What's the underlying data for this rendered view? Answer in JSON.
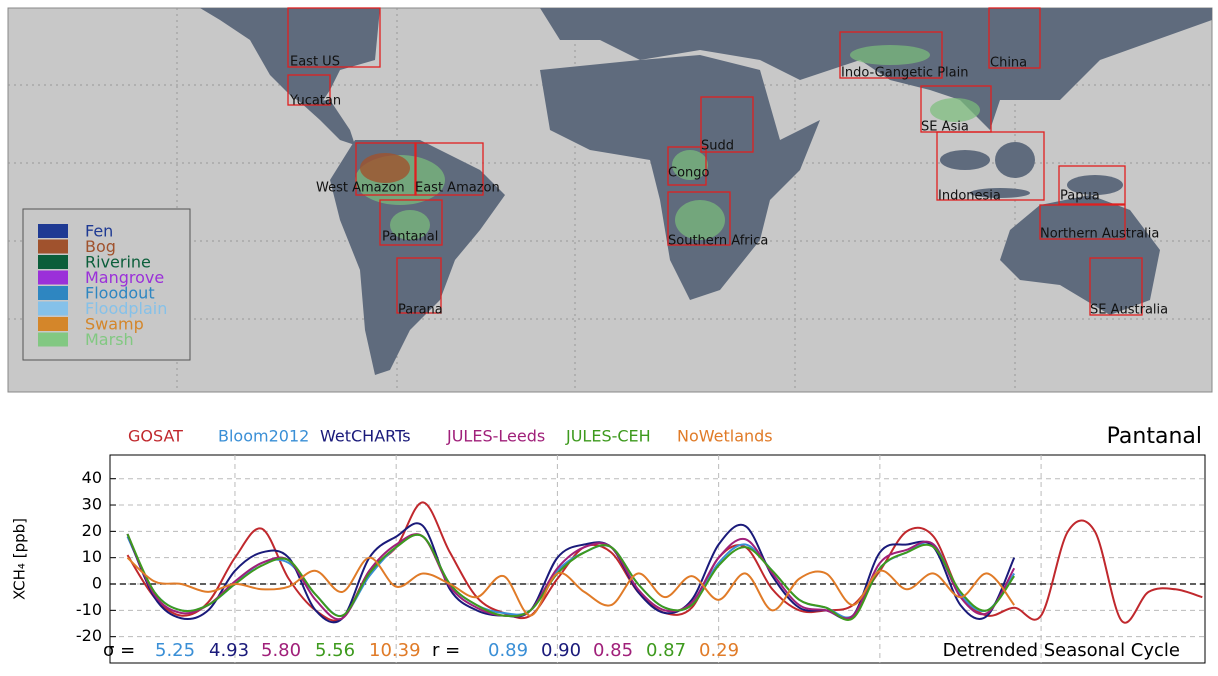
{
  "map": {
    "regions": [
      "East US",
      "Yucatan",
      "West Amazon",
      "East Amazon",
      "Pantanal",
      "Parana",
      "Congo",
      "Sudd",
      "Southern Africa",
      "Indo-Gangetic Plain",
      "China",
      "SE Asia",
      "Indonesia",
      "Papua",
      "Northern Australia",
      "SE Australia"
    ],
    "legend": [
      {
        "name": "Fen",
        "color": "#1f3a93"
      },
      {
        "name": "Bog",
        "color": "#a0522d"
      },
      {
        "name": "Riverine",
        "color": "#0b5e3a"
      },
      {
        "name": "Mangrove",
        "color": "#9b30d9"
      },
      {
        "name": "Floodout",
        "color": "#2e86c1"
      },
      {
        "name": "Floodplain",
        "color": "#85c1e9"
      },
      {
        "name": "Swamp",
        "color": "#d4862a"
      },
      {
        "name": "Marsh",
        "color": "#82c882"
      }
    ]
  },
  "chart_data": {
    "type": "line",
    "title": "Pantanal",
    "ylabel": "XCH₄ [ppb]",
    "annotation": "Detrended Seasonal Cycle",
    "sigma_label": "σ =",
    "r_label": "r =",
    "x": [
      -8,
      -6,
      -4,
      -2,
      0,
      2,
      4,
      6,
      8,
      10,
      12,
      14,
      16,
      18,
      20,
      22,
      24,
      26,
      28,
      30,
      32,
      34,
      36,
      38,
      40,
      42,
      44,
      46,
      48,
      50,
      52,
      54,
      56,
      58,
      60,
      62,
      64,
      66,
      68,
      70,
      72
    ],
    "xlim": [
      -9.3,
      72.2
    ],
    "xticks": [
      0,
      12,
      24,
      36,
      48,
      60
    ],
    "ylim": [
      -30,
      49
    ],
    "yticks": [
      -20,
      -10,
      0,
      10,
      20,
      30,
      40
    ],
    "grid": true,
    "hline": 0,
    "series": [
      {
        "name": "GOSAT",
        "color": "#c0282d",
        "values": [
          11,
          -5,
          -12,
          -7,
          10,
          21,
          2,
          -10,
          -13,
          5,
          14,
          31,
          12,
          -5,
          -11,
          -12,
          2,
          14,
          12,
          -3,
          -11,
          -9,
          10,
          14,
          -2,
          -10,
          -10,
          -8,
          5,
          20,
          18,
          -4,
          -12,
          -9,
          -12,
          20,
          20,
          -14,
          -3,
          -2,
          -5
        ]
      },
      {
        "name": "Bloom2012",
        "color": "#3a8fd6",
        "values": [
          18,
          -3,
          -10,
          -8,
          0,
          8,
          8,
          -4,
          -12,
          3,
          14,
          18,
          0,
          -8,
          -11,
          -10,
          5,
          12,
          14,
          0,
          -9,
          -8,
          8,
          15,
          5,
          -6,
          -9,
          -12,
          6,
          12,
          15,
          -4,
          -10,
          4,
          null,
          null,
          null,
          null,
          null,
          null,
          null
        ],
        "sigma": {
          "value": 5.25,
          "label": "5.25"
        },
        "r": {
          "value": 0.89,
          "label": "0.89"
        }
      },
      {
        "name": "WetCHARTs",
        "color": "#1a1a7a",
        "values": [
          19,
          -5,
          -13,
          -10,
          5,
          12,
          10,
          -10,
          -13,
          10,
          18,
          22,
          -2,
          -10,
          -12,
          -10,
          10,
          15,
          14,
          -3,
          -11,
          -6,
          15,
          22,
          3,
          -9,
          -10,
          -12,
          12,
          15,
          14,
          -8,
          -12,
          10,
          null,
          null,
          null,
          null,
          null,
          null,
          null
        ],
        "sigma": {
          "value": 4.93,
          "label": "4.93"
        },
        "r": {
          "value": 0.9,
          "label": "0.90"
        }
      },
      {
        "name": "JULES-Leeds",
        "color": "#a0207a",
        "values": [
          19,
          -4,
          -11,
          -8,
          1,
          8,
          9,
          -6,
          -13,
          5,
          15,
          18,
          -1,
          -9,
          -12,
          -10,
          6,
          14,
          14,
          -2,
          -10,
          -7,
          10,
          17,
          4,
          -8,
          -10,
          -12,
          8,
          13,
          15,
          -5,
          -11,
          6,
          null,
          null,
          null,
          null,
          null,
          null,
          null
        ],
        "sigma": {
          "value": 5.8,
          "label": "5.80"
        },
        "r": {
          "value": 0.85,
          "label": "0.85"
        }
      },
      {
        "name": "JULES-CEH",
        "color": "#3e9a1e",
        "values": [
          19,
          -3,
          -10,
          -8,
          0,
          7,
          9,
          -4,
          -12,
          4,
          14,
          18,
          0,
          -8,
          -12,
          -10,
          4,
          12,
          14,
          0,
          -9,
          -8,
          7,
          14,
          5,
          -6,
          -9,
          -13,
          6,
          12,
          14,
          -3,
          -10,
          3,
          null,
          null,
          null,
          null,
          null,
          null,
          null
        ],
        "sigma": {
          "value": 5.56,
          "label": "5.56"
        },
        "r": {
          "value": 0.87,
          "label": "0.87"
        }
      },
      {
        "name": "NoWetlands",
        "color": "#e07b28",
        "values": [
          10,
          1,
          0,
          -3,
          0,
          -2,
          -1,
          5,
          -3,
          10,
          -1,
          4,
          0,
          -5,
          3,
          -12,
          4,
          -3,
          -8,
          4,
          -5,
          3,
          -6,
          4,
          -10,
          2,
          4,
          -8,
          5,
          -2,
          4,
          -5,
          4,
          -8,
          null,
          null,
          null,
          null,
          null,
          null,
          null
        ],
        "sigma": {
          "value": 10.39,
          "label": "10.39"
        },
        "r": {
          "value": 0.29,
          "label": "0.29"
        }
      }
    ]
  }
}
